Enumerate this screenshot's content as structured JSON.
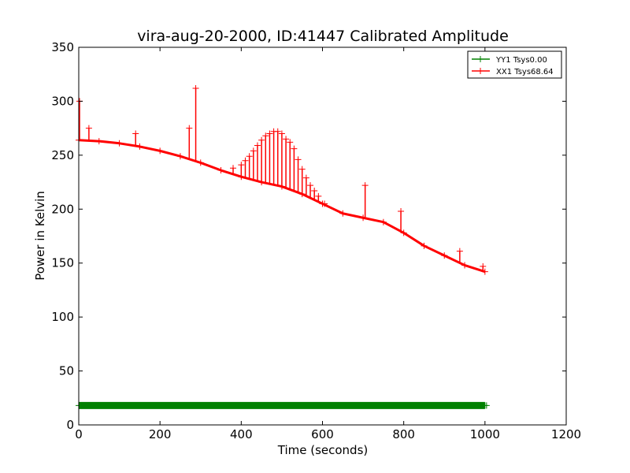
{
  "chart_data": {
    "type": "line",
    "title": "vira-aug-20-2000, ID:41447 Calibrated Amplitude",
    "xlabel": "Time (seconds)",
    "ylabel": "Power in Kelvin",
    "xlim": [
      0,
      1200
    ],
    "ylim": [
      0,
      350
    ],
    "xticks": [
      0,
      200,
      400,
      600,
      800,
      1000,
      1200
    ],
    "yticks": [
      0,
      50,
      100,
      150,
      200,
      250,
      300,
      350
    ],
    "xtick_labels": [
      "0",
      "200",
      "400",
      "600",
      "800",
      "1000",
      "1200"
    ],
    "ytick_labels": [
      "0",
      "50",
      "100",
      "150",
      "200",
      "250",
      "300",
      "350"
    ],
    "grid": false,
    "legend_position": "top-right",
    "series": [
      {
        "name": "YY1 Tsys0.00",
        "color": "#008000",
        "marker": "+",
        "x": [
          0,
          100,
          200,
          300,
          400,
          500,
          600,
          700,
          800,
          900,
          1000
        ],
        "y": [
          18,
          18,
          18,
          18,
          18,
          18,
          18,
          18,
          18,
          18,
          18
        ]
      },
      {
        "name": "XX1 Tsys68.64",
        "color": "#ff0000",
        "marker": "+",
        "x": [
          0,
          50,
          100,
          150,
          200,
          250,
          300,
          350,
          400,
          450,
          500,
          550,
          600,
          650,
          700,
          750,
          800,
          850,
          900,
          950,
          1000
        ],
        "y": [
          264,
          263,
          261,
          258,
          254,
          249,
          243,
          236,
          230,
          225,
          221,
          214,
          205,
          196,
          192,
          188,
          178,
          166,
          157,
          148,
          142
        ],
        "spikes": [
          {
            "x": 2,
            "y": 300
          },
          {
            "x": 25,
            "y": 275
          },
          {
            "x": 140,
            "y": 270
          },
          {
            "x": 272,
            "y": 275
          },
          {
            "x": 288,
            "y": 312
          },
          {
            "x": 380,
            "y": 238
          },
          {
            "x": 400,
            "y": 241
          },
          {
            "x": 410,
            "y": 245
          },
          {
            "x": 420,
            "y": 249
          },
          {
            "x": 430,
            "y": 254
          },
          {
            "x": 440,
            "y": 259
          },
          {
            "x": 450,
            "y": 264
          },
          {
            "x": 460,
            "y": 268
          },
          {
            "x": 470,
            "y": 270
          },
          {
            "x": 480,
            "y": 272
          },
          {
            "x": 490,
            "y": 272
          },
          {
            "x": 500,
            "y": 270
          },
          {
            "x": 510,
            "y": 265
          },
          {
            "x": 520,
            "y": 262
          },
          {
            "x": 530,
            "y": 256
          },
          {
            "x": 540,
            "y": 246
          },
          {
            "x": 550,
            "y": 237
          },
          {
            "x": 560,
            "y": 229
          },
          {
            "x": 570,
            "y": 222
          },
          {
            "x": 580,
            "y": 217
          },
          {
            "x": 590,
            "y": 212
          },
          {
            "x": 605,
            "y": 205
          },
          {
            "x": 705,
            "y": 222
          },
          {
            "x": 793,
            "y": 198
          },
          {
            "x": 938,
            "y": 161
          },
          {
            "x": 995,
            "y": 147
          }
        ]
      }
    ]
  }
}
